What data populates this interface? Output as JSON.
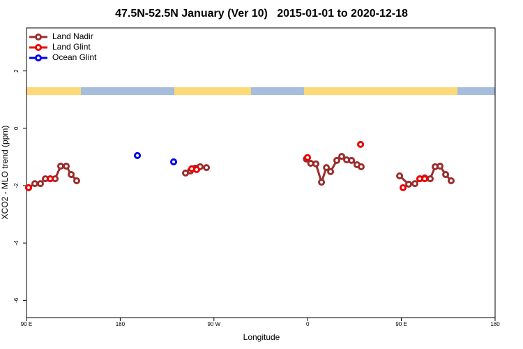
{
  "chart_data": {
    "type": "scatter",
    "title": "47.5N-52.5N January (Ver 10)   2015-01-01 to 2020-12-18",
    "x_label": "Longitude",
    "y_label": "XCO2 - MLO trend (ppm)",
    "xlim": [
      90,
      540
    ],
    "ylim": [
      -6.6,
      3.5
    ],
    "xticks": [
      {
        "value": 90,
        "label": "90 E"
      },
      180,
      {
        "value": 270,
        "label": "90 W"
      },
      {
        "value": 360,
        "label": "0"
      },
      {
        "value": 450,
        "label": "90 E"
      },
      {
        "value": 540,
        "label": "180"
      }
    ],
    "yticks": [
      2,
      0,
      -2,
      -4,
      -6
    ],
    "legend": "top-left",
    "series": [
      {
        "name": "Land Nadir",
        "color": "#9b2d2d",
        "line": true,
        "x": [
          92.0,
          98.0,
          103.4,
          108.1,
          112.8,
          117.5,
          122.8,
          128.2,
          132.9,
          138.2,
          null,
          242.7,
          247.4,
          252.1,
          256.7,
          262.8,
          null,
          358.7,
          362.9,
          367.9,
          373.3,
          378.0,
          382.0,
          388.0,
          392.7,
          397.4,
          402.1,
          407.4,
          411.4,
          null,
          448.3,
          457.0,
          463.0,
          467.7,
          472.4,
          477.7,
          482.4,
          487.1,
          492.5,
          497.8
        ],
        "values": [
          -2.07,
          -1.93,
          -1.93,
          -1.76,
          -1.76,
          -1.76,
          -1.32,
          -1.32,
          -1.61,
          -1.83,
          null,
          -1.56,
          -1.49,
          -1.39,
          -1.34,
          -1.37,
          null,
          -1.07,
          -1.22,
          -1.24,
          -1.88,
          -1.37,
          -1.51,
          -1.12,
          -0.98,
          -1.1,
          -1.12,
          -1.27,
          -1.34,
          null,
          -1.66,
          -1.95,
          -1.93,
          -1.76,
          -1.73,
          -1.76,
          -1.34,
          -1.32,
          -1.61,
          -1.83
        ]
      },
      {
        "name": "Land Glint",
        "color": "#ee0000",
        "line": false,
        "x": [
          92.0,
          112.8,
          248.7,
          253.4,
          359.9,
          410.8,
          451.6,
          467.7,
          472.4
        ],
        "values": [
          -2.07,
          -1.76,
          -1.41,
          -1.44,
          -1.02,
          -0.56,
          -2.07,
          -1.76,
          -1.76
        ]
      },
      {
        "name": "Ocean Glint",
        "color": "#0000ee",
        "line": false,
        "x": [
          196.5,
          231.3
        ],
        "values": [
          -0.95,
          -1.17
        ]
      }
    ]
  }
}
